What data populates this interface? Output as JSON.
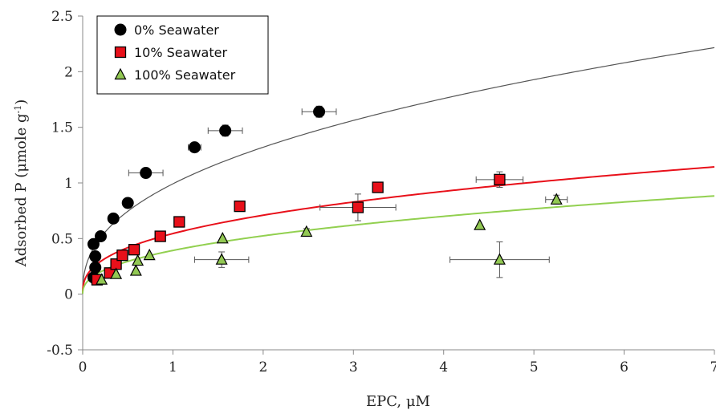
{
  "chart_data": {
    "type": "scatter",
    "xlabel": "EPC, μM",
    "ylabel_main": "Adsorbed P (μmole g",
    "ylabel_sup": "-1",
    "ylabel_close": ")",
    "xlim": [
      0,
      7
    ],
    "ylim": [
      -0.5,
      2.5
    ],
    "x_ticks": [
      "0",
      "1",
      "2",
      "3",
      "4",
      "5",
      "6",
      "7"
    ],
    "y_ticks": [
      "-0.5",
      "0",
      "0.5",
      "1",
      "1.5",
      "2",
      "2.5"
    ],
    "grid": false,
    "legend_position": "top-left",
    "series": [
      {
        "name": "0% Seawater",
        "marker": "circle",
        "color": "#000000",
        "curve_color": "#555555",
        "points": [
          {
            "x": 0.12,
            "y": 0.15
          },
          {
            "x": 0.14,
            "y": 0.24
          },
          {
            "x": 0.14,
            "y": 0.34
          },
          {
            "x": 0.12,
            "y": 0.45
          },
          {
            "x": 0.2,
            "y": 0.52
          },
          {
            "x": 0.34,
            "y": 0.68
          },
          {
            "x": 0.5,
            "y": 0.82
          },
          {
            "x": 0.7,
            "y": 1.09,
            "xerr": 0.19,
            "yerr": 0.04
          },
          {
            "x": 1.24,
            "y": 1.32,
            "xerr": 0.07,
            "yerr": 0.03
          },
          {
            "x": 1.58,
            "y": 1.47,
            "xerr": 0.19,
            "yerr": 0.05
          },
          {
            "x": 2.62,
            "y": 1.64,
            "xerr": 0.19,
            "yerr": 0.05
          }
        ],
        "curve": {
          "a": 0.992,
          "b": 0.413
        }
      },
      {
        "name": "10% Seawater",
        "marker": "square",
        "color": "#e8101a",
        "curve_color": "#e8101a",
        "points": [
          {
            "x": 0.16,
            "y": 0.13
          },
          {
            "x": 0.3,
            "y": 0.19
          },
          {
            "x": 0.37,
            "y": 0.27
          },
          {
            "x": 0.44,
            "y": 0.35
          },
          {
            "x": 0.57,
            "y": 0.4
          },
          {
            "x": 0.86,
            "y": 0.52
          },
          {
            "x": 1.07,
            "y": 0.65
          },
          {
            "x": 1.74,
            "y": 0.79
          },
          {
            "x": 3.05,
            "y": 0.78,
            "xerr": 0.42,
            "yerr": 0.12
          },
          {
            "x": 3.27,
            "y": 0.96
          },
          {
            "x": 4.62,
            "y": 1.03,
            "xerr": 0.26,
            "yerr": 0.07
          }
        ],
        "curve": {
          "a": 0.545,
          "b": 0.381
        }
      },
      {
        "name": "100% Seawater",
        "marker": "triangle",
        "color": "#92c853",
        "curve_color": "#92d050",
        "points": [
          {
            "x": 0.21,
            "y": 0.13
          },
          {
            "x": 0.37,
            "y": 0.18
          },
          {
            "x": 0.59,
            "y": 0.21
          },
          {
            "x": 0.61,
            "y": 0.3
          },
          {
            "x": 0.74,
            "y": 0.35
          },
          {
            "x": 1.54,
            "y": 0.31,
            "xerr": 0.3,
            "yerr": 0.07
          },
          {
            "x": 1.55,
            "y": 0.5
          },
          {
            "x": 2.48,
            "y": 0.56,
            "yerr": 0.03
          },
          {
            "x": 4.4,
            "y": 0.62
          },
          {
            "x": 4.62,
            "y": 0.31,
            "xerr": 0.55,
            "yerr": 0.16
          },
          {
            "x": 5.25,
            "y": 0.85,
            "xerr": 0.12,
            "yerr": 0.04
          }
        ],
        "curve": {
          "a": 0.393,
          "b": 0.416
        }
      }
    ]
  }
}
